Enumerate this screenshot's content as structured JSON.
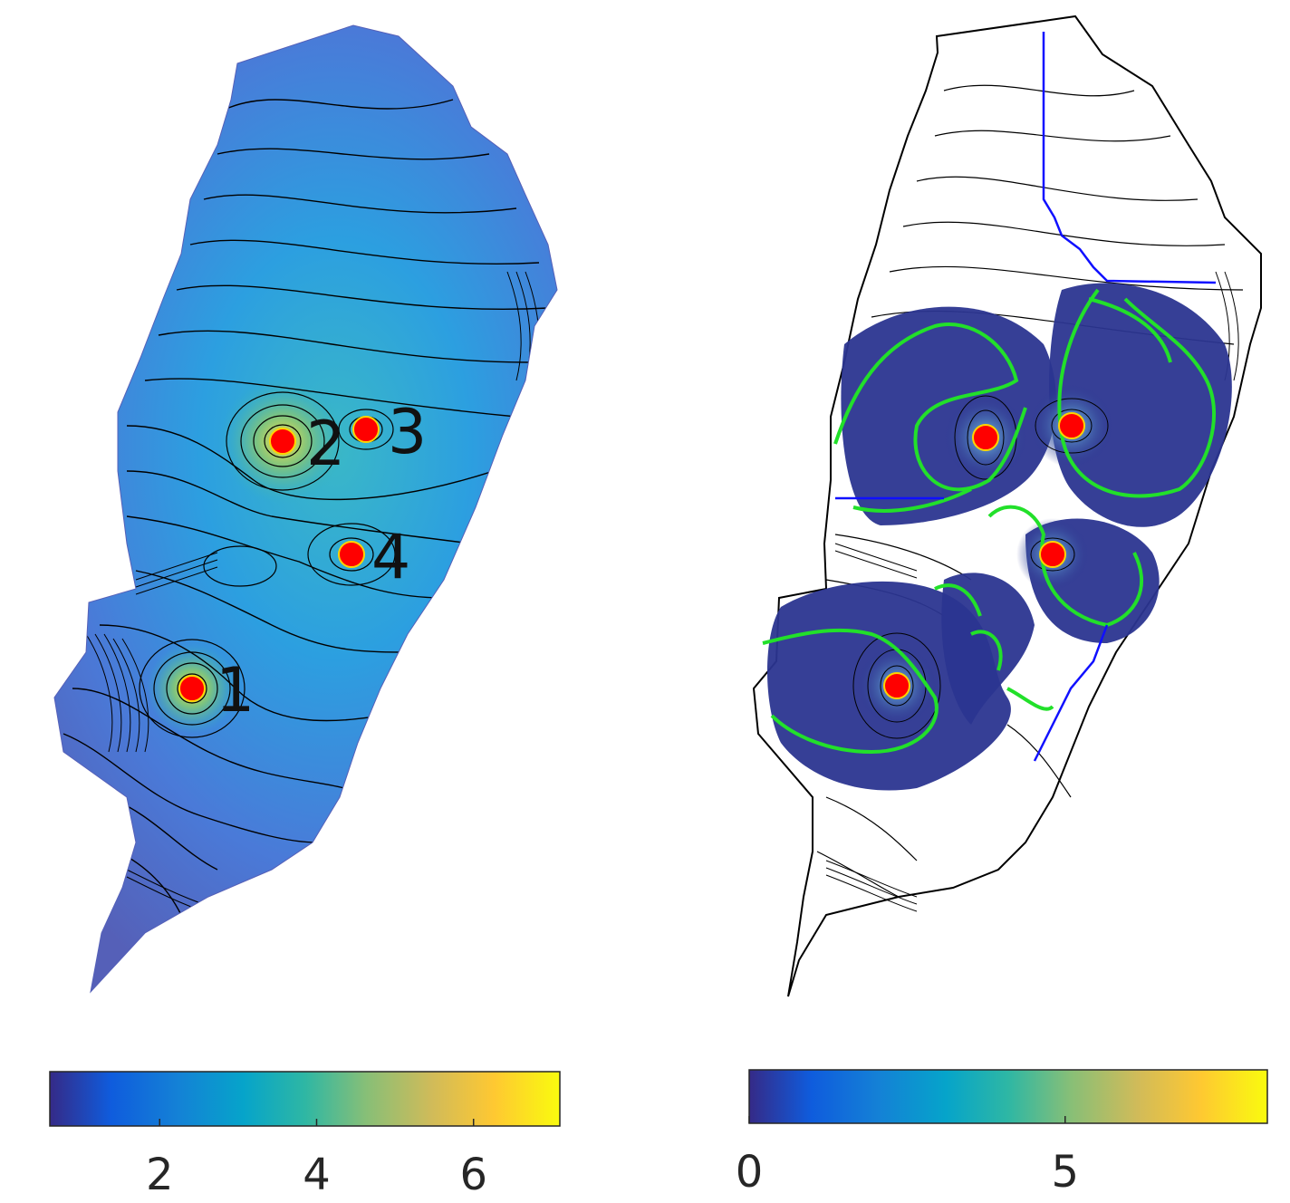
{
  "left_map": {
    "wells": [
      {
        "id": "1",
        "label": "1"
      },
      {
        "id": "2",
        "label": "2"
      },
      {
        "id": "3",
        "label": "3"
      },
      {
        "id": "4",
        "label": "4"
      }
    ],
    "colorbar": {
      "ticks": [
        {
          "value": 2,
          "label": "2"
        },
        {
          "value": 4,
          "label": "4"
        },
        {
          "value": 6,
          "label": "6"
        }
      ],
      "range": [
        0.6,
        7.1
      ]
    }
  },
  "right_map": {
    "wells": [
      {
        "id": "1"
      },
      {
        "id": "2"
      },
      {
        "id": "3"
      },
      {
        "id": "4"
      }
    ],
    "colorbar": {
      "ticks": [
        {
          "value": 0,
          "label": "0"
        },
        {
          "value": 5,
          "label": "5"
        }
      ],
      "range": [
        0,
        8.2
      ]
    },
    "overlay_colors": {
      "green_contour": "#22e02a",
      "blue_boundary": "#1010ff"
    }
  },
  "colormap": "parula",
  "well_marker_color": "#ff0000",
  "well_marker_edge": "#ffd400"
}
